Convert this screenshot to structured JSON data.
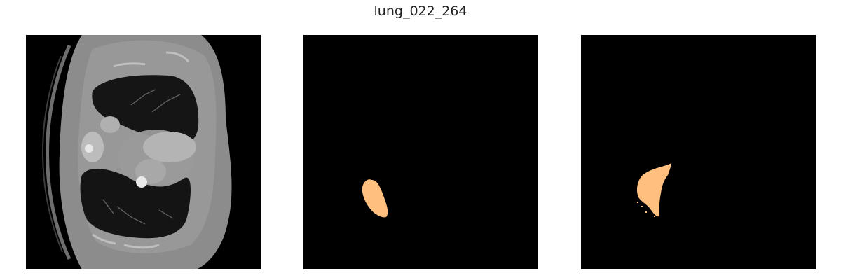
{
  "figure": {
    "title": "lung_022_264"
  },
  "panels": [
    {
      "id": "ct-image"
    },
    {
      "id": "ground-truth-mask"
    },
    {
      "id": "predicted-mask"
    }
  ],
  "colors": {
    "background": "#000000",
    "mask": "#ffc07f",
    "tissue": "#808080"
  }
}
